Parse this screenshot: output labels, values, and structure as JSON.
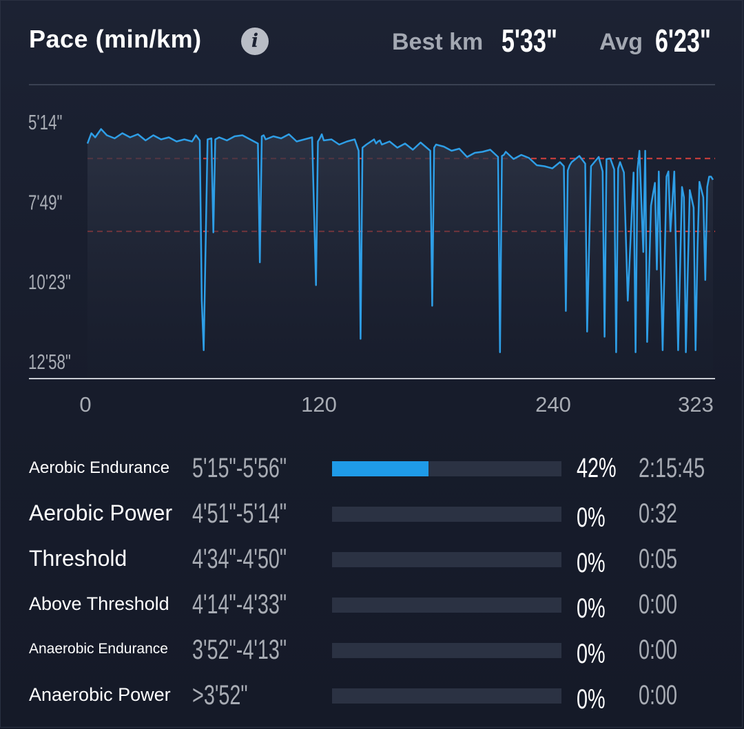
{
  "header": {
    "title": "Pace (min/km)",
    "info_icon": "info-icon",
    "best_km_label": "Best km",
    "best_km_value": "5'33\"",
    "avg_label": "Avg",
    "avg_value": "6'23\""
  },
  "chart_data": {
    "type": "line",
    "title": "Pace (min/km)",
    "xlabel": "",
    "ylabel": "",
    "x_ticks": [
      "0",
      "120",
      "240",
      "323"
    ],
    "x_tick_values": [
      0,
      120,
      240,
      323
    ],
    "y_ticks": [
      "5'14\"",
      "7'49\"",
      "10'23\"",
      "12'58\""
    ],
    "y_tick_values_sec": [
      314,
      469,
      623,
      778
    ],
    "y_axis_inverted": true,
    "xlim": [
      0,
      323
    ],
    "ylim_sec": [
      298,
      811
    ],
    "reference_lines_sec": [
      385,
      526
    ],
    "grid": false,
    "colors": {
      "line": "#2e9ee6",
      "reference": "#d6403c"
    },
    "series": [
      {
        "x": [
          0,
          2,
          4,
          7,
          10,
          14,
          18,
          22,
          26,
          30,
          34,
          38,
          42,
          46,
          50,
          54,
          56,
          57,
          58,
          59,
          60,
          62,
          64,
          65,
          66,
          68,
          72,
          76,
          80,
          84,
          88,
          89,
          90,
          91,
          92,
          96,
          100,
          104,
          108,
          112,
          116,
          118,
          119,
          120,
          121,
          122,
          126,
          130,
          134,
          138,
          140,
          141,
          142,
          144,
          148,
          149,
          150,
          151,
          152,
          156,
          160,
          164,
          168,
          172,
          177,
          178,
          179,
          180,
          184,
          188,
          192,
          196,
          200,
          204,
          208,
          212,
          213,
          214,
          215,
          216,
          220,
          224,
          228,
          232,
          236,
          240,
          244,
          246,
          247,
          248,
          249,
          250,
          254,
          256,
          257,
          258,
          260,
          264,
          266,
          267,
          268,
          270,
          272,
          273,
          274,
          275,
          277,
          279,
          282,
          283,
          284,
          285,
          287,
          288,
          289,
          291,
          293,
          294,
          295,
          297,
          299,
          300,
          301,
          303,
          305,
          307,
          308,
          309,
          311,
          313,
          314,
          315,
          316,
          318,
          319,
          320,
          321,
          322,
          323
        ],
        "y_sec": [
          356,
          336,
          344,
          328,
          340,
          346,
          336,
          344,
          338,
          350,
          340,
          348,
          344,
          352,
          348,
          352,
          340,
          345,
          350,
          660,
          756,
          348,
          346,
          528,
          348,
          344,
          350,
          342,
          340,
          348,
          356,
          586,
          342,
          340,
          348,
          342,
          346,
          338,
          352,
          348,
          344,
          630,
          352,
          346,
          338,
          350,
          348,
          358,
          352,
          348,
          370,
          734,
          364,
          358,
          348,
          356,
          352,
          350,
          358,
          352,
          364,
          356,
          368,
          354,
          370,
          670,
          364,
          358,
          362,
          370,
          366,
          382,
          374,
          372,
          368,
          382,
          760,
          380,
          378,
          372,
          386,
          378,
          384,
          398,
          400,
          404,
          392,
          400,
          680,
          408,
          398,
          392,
          380,
          390,
          395,
          720,
          400,
          382,
          410,
          730,
          386,
          385,
          406,
          760,
          404,
          392,
          412,
          660,
          412,
          760,
          406,
          370,
          566,
          370,
          740,
          476,
          432,
          600,
          410,
          756,
          420,
          410,
          526,
          410,
          756,
          440,
          460,
          760,
          446,
          480,
          756,
          560,
          430,
          460,
          620,
          440,
          420,
          420,
          426
        ]
      }
    ]
  },
  "zones": [
    {
      "name": "Aerobic Endurance",
      "range": "5'15\"-5'56\"",
      "percent": "42%",
      "fraction": 0.42,
      "time": "2:15:45"
    },
    {
      "name": "Aerobic Power",
      "range": "4'51\"-5'14\"",
      "percent": "0%",
      "fraction": 0,
      "time": "0:32"
    },
    {
      "name": "Threshold",
      "range": "4'34\"-4'50\"",
      "percent": "0%",
      "fraction": 0,
      "time": "0:05"
    },
    {
      "name": "Above Threshold",
      "range": "4'14\"-4'33\"",
      "percent": "0%",
      "fraction": 0,
      "time": "0:00"
    },
    {
      "name": "Anaerobic Endurance",
      "range": "3'52\"-4'13\"",
      "percent": "0%",
      "fraction": 0,
      "time": "0:00"
    },
    {
      "name": "Anaerobic Power",
      "range": ">3'52\"",
      "percent": "0%",
      "fraction": 0,
      "time": "0:00"
    }
  ]
}
